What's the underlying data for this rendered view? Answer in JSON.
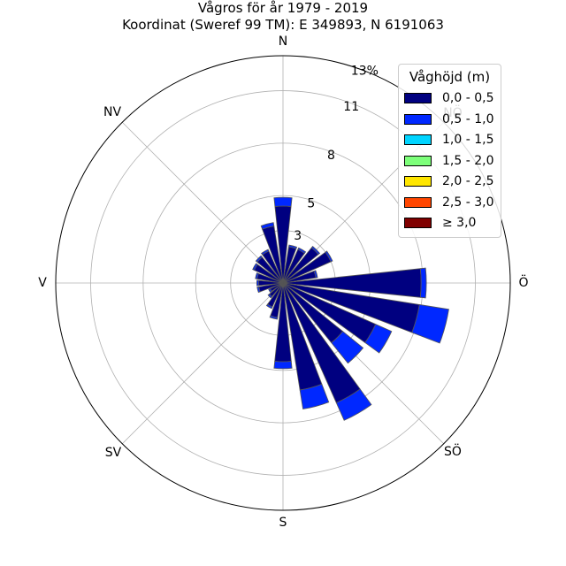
{
  "titles": {
    "line1": "Vågros för år 1979 - 2019",
    "line2": "Koordinat (Sweref 99 TM): E 349893, N 6191063"
  },
  "chart_data": {
    "type": "wind_rose",
    "title": "Vågros för år 1979 - 2019",
    "subtitle": "Koordinat (Sweref 99 TM): E 349893, N 6191063",
    "direction_labels": [
      "N",
      "NV",
      "V",
      "SV",
      "S",
      "SÖ",
      "Ö",
      "NÖ"
    ],
    "radial_ticks": [
      "3",
      "5",
      "8",
      "11",
      "13%"
    ],
    "radial_tick_values": [
      3,
      5,
      8,
      11,
      13
    ],
    "rmax": 13,
    "sector_count": 24,
    "direction_convention": "compass, clockwise from north",
    "legend_title": "Våghöjd (m)",
    "legend_placement": "top-right",
    "series": [
      {
        "name": "0,0 - 0,5",
        "color": "#000080"
      },
      {
        "name": "0,5 - 1,0",
        "color": "#0028ff"
      },
      {
        "name": "1,0 - 1,5",
        "color": "#00d4ff"
      },
      {
        "name": "1,5 - 2,0",
        "color": "#7dff7a"
      },
      {
        "name": "2,0 - 2,5",
        "color": "#ffe600"
      },
      {
        "name": "2,5 - 3,0",
        "color": "#ff4600"
      },
      {
        "name": "≥ 3,0",
        "color": "#800000"
      }
    ],
    "sectors": [
      {
        "direction": 0,
        "values": [
          4.4,
          0.5,
          0,
          0,
          0,
          0,
          0
        ]
      },
      {
        "direction": 15,
        "values": [
          2.1,
          0.1,
          0,
          0,
          0,
          0,
          0
        ]
      },
      {
        "direction": 30,
        "values": [
          2.1,
          0.1,
          0,
          0,
          0,
          0,
          0
        ]
      },
      {
        "direction": 45,
        "values": [
          2.6,
          0.1,
          0,
          0,
          0,
          0,
          0
        ]
      },
      {
        "direction": 60,
        "values": [
          3.0,
          0.1,
          0,
          0,
          0,
          0,
          0
        ]
      },
      {
        "direction": 75,
        "values": [
          1.9,
          0.1,
          0,
          0,
          0,
          0,
          0
        ]
      },
      {
        "direction": 90,
        "values": [
          7.9,
          0.3,
          0,
          0,
          0,
          0,
          0
        ]
      },
      {
        "direction": 105,
        "values": [
          7.9,
          1.7,
          0,
          0,
          0,
          0,
          0
        ]
      },
      {
        "direction": 120,
        "values": [
          5.8,
          1.0,
          0,
          0,
          0,
          0,
          0
        ]
      },
      {
        "direction": 135,
        "values": [
          4.4,
          1.5,
          0,
          0,
          0,
          0,
          0
        ]
      },
      {
        "direction": 150,
        "values": [
          7.5,
          1.1,
          0,
          0,
          0,
          0,
          0
        ]
      },
      {
        "direction": 165,
        "values": [
          6.2,
          1.1,
          0,
          0,
          0,
          0,
          0
        ]
      },
      {
        "direction": 180,
        "values": [
          4.5,
          0.4,
          0,
          0,
          0,
          0,
          0
        ]
      },
      {
        "direction": 195,
        "values": [
          2.0,
          0.1,
          0,
          0,
          0,
          0,
          0
        ]
      },
      {
        "direction": 210,
        "values": [
          1.5,
          0.1,
          0,
          0,
          0,
          0,
          0
        ]
      },
      {
        "direction": 225,
        "values": [
          1.0,
          0.1,
          0,
          0,
          0,
          0,
          0
        ]
      },
      {
        "direction": 240,
        "values": [
          0.8,
          0.1,
          0,
          0,
          0,
          0,
          0
        ]
      },
      {
        "direction": 255,
        "values": [
          1.4,
          0.1,
          0,
          0,
          0,
          0,
          0
        ]
      },
      {
        "direction": 270,
        "values": [
          1.4,
          0.1,
          0,
          0,
          0,
          0,
          0
        ]
      },
      {
        "direction": 285,
        "values": [
          1.5,
          0.1,
          0,
          0,
          0,
          0,
          0
        ]
      },
      {
        "direction": 300,
        "values": [
          1.8,
          0.1,
          0,
          0,
          0,
          0,
          0
        ]
      },
      {
        "direction": 315,
        "values": [
          1.9,
          0.1,
          0,
          0,
          0,
          0,
          0
        ]
      },
      {
        "direction": 330,
        "values": [
          2.0,
          0.1,
          0,
          0,
          0,
          0,
          0
        ]
      },
      {
        "direction": 345,
        "values": [
          3.3,
          0.2,
          0,
          0,
          0,
          0,
          0
        ]
      }
    ]
  }
}
